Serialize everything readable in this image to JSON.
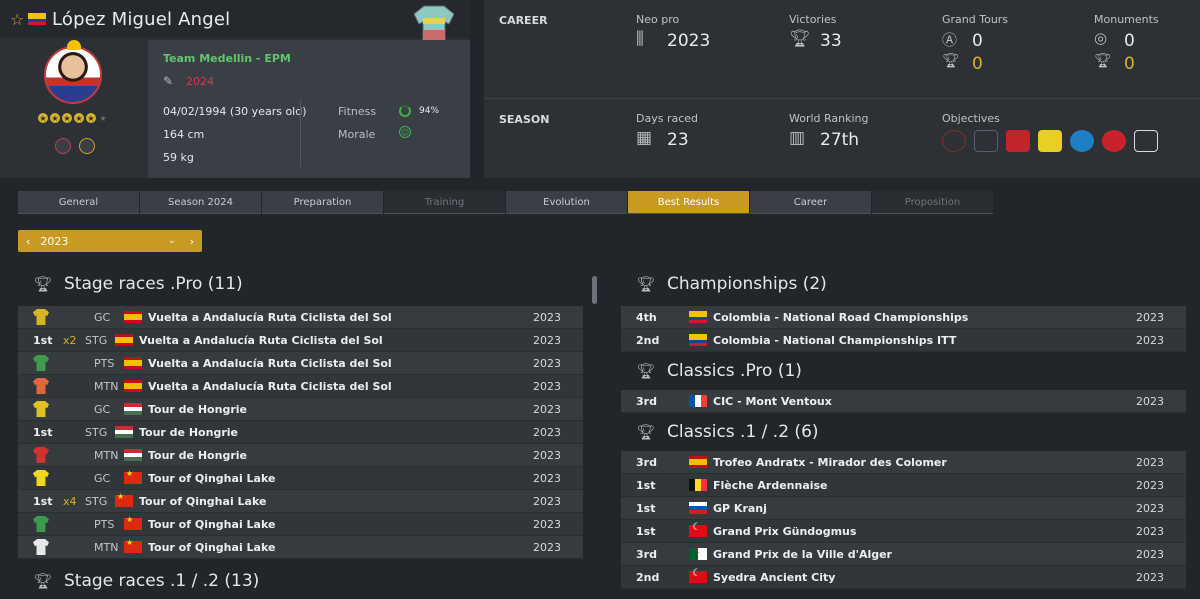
{
  "player": {
    "name": "López Miguel Angel",
    "team": "Team Medellin - EPM",
    "contract_year": "2024",
    "birth": "04/02/1994 (30 years old)",
    "height": "164 cm",
    "weight": "59 kg",
    "fitness_label": "Fitness",
    "fitness_value": "94%",
    "morale_label": "Morale",
    "potential_stars": 5
  },
  "career": {
    "section": "CAREER",
    "neo_pro_label": "Neo pro",
    "neo_pro_value": "2023",
    "victories_label": "Victories",
    "victories_value": "33",
    "grand_tours_label": "Grand Tours",
    "grand_tours_value": "0",
    "grand_tours_wins": "0",
    "monuments_label": "Monuments",
    "monuments_value": "0",
    "monuments_wins": "0"
  },
  "season": {
    "section": "SEASON",
    "days_raced_label": "Days raced",
    "days_raced_value": "23",
    "ranking_label": "World Ranking",
    "ranking_value": "27th",
    "objectives_label": "Objectives"
  },
  "tabs": [
    {
      "label": "General",
      "state": "normal"
    },
    {
      "label": "Season 2024",
      "state": "normal"
    },
    {
      "label": "Preparation",
      "state": "normal"
    },
    {
      "label": "Training",
      "state": "disabled"
    },
    {
      "label": "Evolution",
      "state": "normal"
    },
    {
      "label": "Best Results",
      "state": "active"
    },
    {
      "label": "Career",
      "state": "normal"
    },
    {
      "label": "Proposition",
      "state": "disabled"
    }
  ],
  "year_filter": {
    "value": "2023"
  },
  "left_sections": [
    {
      "title": "Stage races .Pro (11)",
      "rows": [
        {
          "jersey": "#d8b621",
          "rank": "",
          "mult": "",
          "type": "GC",
          "flag": "esp",
          "race": "Vuelta a Andalucía Ruta Ciclista del Sol",
          "year": "2023"
        },
        {
          "jersey": "",
          "rank": "1st",
          "mult": "x2",
          "type": "STG",
          "flag": "esp",
          "race": "Vuelta a Andalucía Ruta Ciclista del Sol",
          "year": "2023"
        },
        {
          "jersey": "#3f9a4b",
          "rank": "",
          "mult": "",
          "type": "PTS",
          "flag": "esp",
          "race": "Vuelta a Andalucía Ruta Ciclista del Sol",
          "year": "2023"
        },
        {
          "jersey": "#e0673c",
          "rank": "",
          "mult": "",
          "type": "MTN",
          "flag": "esp",
          "race": "Vuelta a Andalucía Ruta Ciclista del Sol",
          "year": "2023"
        },
        {
          "jersey": "#e2c01f",
          "rank": "",
          "mult": "",
          "type": "GC",
          "flag": "hun",
          "race": "Tour de Hongrie",
          "year": "2023"
        },
        {
          "jersey": "",
          "rank": "1st",
          "mult": "",
          "type": "STG",
          "flag": "hun",
          "race": "Tour de Hongrie",
          "year": "2023"
        },
        {
          "jersey": "#d2312c",
          "rank": "",
          "mult": "",
          "type": "MTN",
          "flag": "hun",
          "race": "Tour de Hongrie",
          "year": "2023"
        },
        {
          "jersey": "#f0d821",
          "rank": "",
          "mult": "",
          "type": "GC",
          "flag": "chn",
          "race": "Tour of Qinghai Lake",
          "year": "2023"
        },
        {
          "jersey": "",
          "rank": "1st",
          "mult": "x4",
          "type": "STG",
          "flag": "chn",
          "race": "Tour of Qinghai Lake",
          "year": "2023"
        },
        {
          "jersey": "#3c9b4a",
          "rank": "",
          "mult": "",
          "type": "PTS",
          "flag": "chn",
          "race": "Tour of Qinghai Lake",
          "year": "2023"
        },
        {
          "jersey": "#e8e8e8",
          "rank": "",
          "mult": "",
          "type": "MTN",
          "flag": "chn",
          "race": "Tour of Qinghai Lake",
          "year": "2023"
        }
      ]
    },
    {
      "title": "Stage races .1 / .2 (13)",
      "rows": []
    }
  ],
  "right_sections": [
    {
      "title": "Championships (2)",
      "rows": [
        {
          "rank": "4th",
          "flag": "col",
          "race": "Colombia - National Road Championships",
          "year": "2023"
        },
        {
          "rank": "2nd",
          "flag": "col",
          "race": "Colombia - National Championships ITT",
          "year": "2023"
        }
      ]
    },
    {
      "title": "Classics .Pro (1)",
      "rows": [
        {
          "rank": "3rd",
          "flag": "fra",
          "race": "CIC - Mont Ventoux",
          "year": "2023"
        }
      ]
    },
    {
      "title": "Classics .1 / .2 (6)",
      "rows": [
        {
          "rank": "3rd",
          "flag": "esp",
          "race": "Trofeo Andratx - Mirador des Colomer",
          "year": "2023"
        },
        {
          "rank": "1st",
          "flag": "bel",
          "race": "Flèche Ardennaise",
          "year": "2023"
        },
        {
          "rank": "1st",
          "flag": "slo",
          "race": "GP Kranj",
          "year": "2023"
        },
        {
          "rank": "1st",
          "flag": "tur",
          "race": "Grand Prix Gündogmus",
          "year": "2023"
        },
        {
          "rank": "3rd",
          "flag": "alg",
          "race": "Grand Prix de la Ville d'Alger",
          "year": "2023"
        },
        {
          "rank": "2nd",
          "flag": "tur",
          "race": "Syedra Ancient City",
          "year": "2023"
        }
      ]
    }
  ],
  "colors": {
    "accent": "#c99a21",
    "green": "#5fc76d",
    "contract": "#e0334d",
    "gold": "#d6b332"
  }
}
